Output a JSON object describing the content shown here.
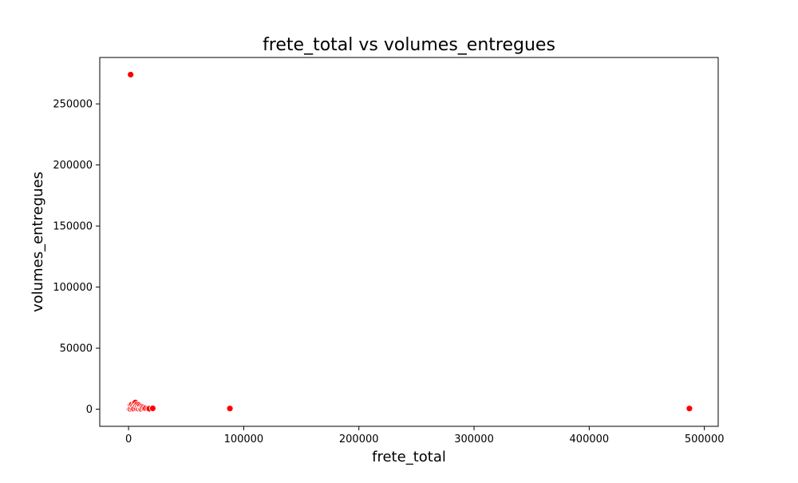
{
  "chart_data": {
    "type": "scatter",
    "title": "frete_total vs volumes_entregues",
    "xlabel": "frete_total",
    "ylabel": "volumes_entregues",
    "xlim": [
      -25000,
      512000
    ],
    "ylim": [
      -14000,
      288000
    ],
    "xticks": [
      0,
      100000,
      200000,
      300000,
      400000,
      500000
    ],
    "yticks": [
      0,
      50000,
      100000,
      150000,
      200000,
      250000
    ],
    "xtick_labels": [
      "0",
      "100000",
      "200000",
      "300000",
      "400000",
      "500000"
    ],
    "ytick_labels": [
      "0",
      "50000",
      "100000",
      "150000",
      "200000",
      "250000"
    ],
    "grid": false,
    "marker_color": "#ff0000",
    "marker_edge_color": "#ffffff",
    "series": [
      {
        "points": [
          {
            "x": 1800,
            "y": 274000
          },
          {
            "x": 88000,
            "y": 600
          },
          {
            "x": 487000,
            "y": 600
          },
          {
            "x": 100,
            "y": 0
          },
          {
            "x": 500,
            "y": 100
          },
          {
            "x": 900,
            "y": 300
          },
          {
            "x": 1500,
            "y": 200
          },
          {
            "x": 2000,
            "y": 3500
          },
          {
            "x": 2500,
            "y": 800
          },
          {
            "x": 3000,
            "y": 4000
          },
          {
            "x": 3500,
            "y": 300
          },
          {
            "x": 4000,
            "y": 2500
          },
          {
            "x": 4500,
            "y": 600
          },
          {
            "x": 5000,
            "y": 5000
          },
          {
            "x": 5500,
            "y": 1500
          },
          {
            "x": 6000,
            "y": 5500
          },
          {
            "x": 6500,
            "y": 3000
          },
          {
            "x": 7000,
            "y": 800
          },
          {
            "x": 7500,
            "y": 4000
          },
          {
            "x": 8000,
            "y": 2000
          },
          {
            "x": 8500,
            "y": 500
          },
          {
            "x": 9000,
            "y": 3500
          },
          {
            "x": 9500,
            "y": 1200
          },
          {
            "x": 10000,
            "y": 2500
          },
          {
            "x": 10500,
            "y": 700
          },
          {
            "x": 11000,
            "y": 300
          },
          {
            "x": 11500,
            "y": 2000
          },
          {
            "x": 12000,
            "y": 1000
          },
          {
            "x": 13000,
            "y": 1500
          },
          {
            "x": 14000,
            "y": 600
          },
          {
            "x": 15000,
            "y": 800
          },
          {
            "x": 17000,
            "y": 600
          },
          {
            "x": 18000,
            "y": 400
          },
          {
            "x": 21000,
            "y": 700
          }
        ]
      }
    ]
  }
}
